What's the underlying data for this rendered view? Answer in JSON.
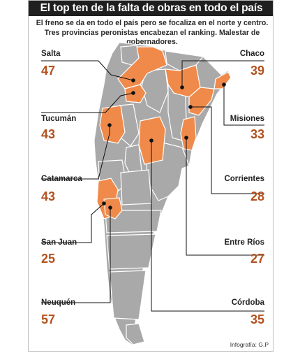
{
  "title": "El top ten de la falta de obras en todo el país",
  "subtitle": "El freno se da en todo el país pero se focaliza en el norte y centro. Tres provincias peronistas encabezan el ranking. Malestar de gobernadores.",
  "credit": "Infografía: G.P",
  "colors": {
    "highlight": "#f08a4b",
    "base": "#a9a9a9",
    "value": "#b3521f",
    "header": "#1f1f1f"
  },
  "provinces": [
    {
      "name": "Salta",
      "value": "47"
    },
    {
      "name": "Tucumán",
      "value": "43"
    },
    {
      "name": "Catamarca",
      "value": "43"
    },
    {
      "name": "San Juan",
      "value": "25"
    },
    {
      "name": "Neuquén",
      "value": "57"
    },
    {
      "name": "Chaco",
      "value": "39"
    },
    {
      "name": "Misiones",
      "value": "33"
    },
    {
      "name": "Corrientes",
      "value": "28"
    },
    {
      "name": "Entre Ríos",
      "value": "27"
    },
    {
      "name": "Córdoba",
      "value": "35"
    }
  ]
}
